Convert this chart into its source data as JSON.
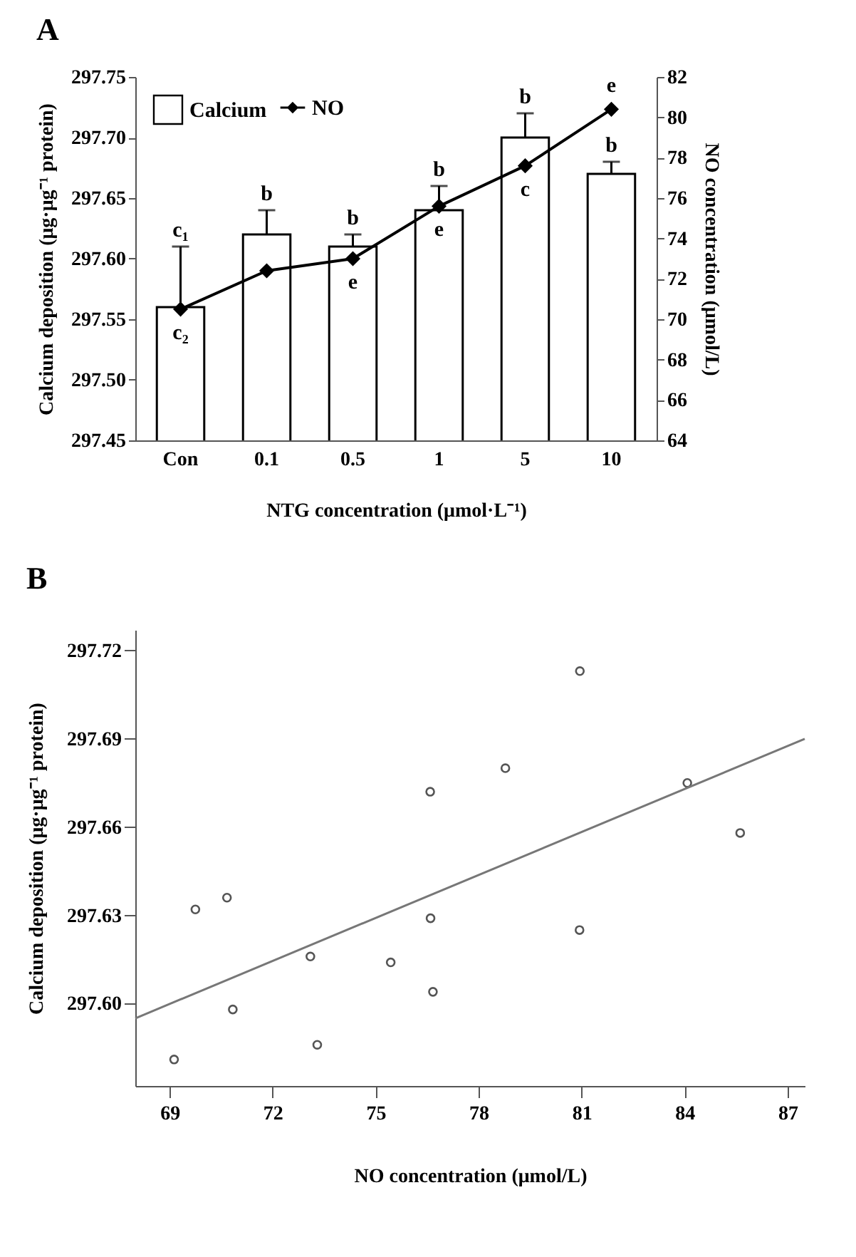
{
  "chart_data": [
    {
      "type": "bar",
      "title": "A",
      "xlabel": "NTG concentration (μmol·L⁻¹)",
      "ylabel": "Calcium deposition (μg·μg⁻¹ protein)",
      "y2label": "NO concentration (μmol/L)",
      "categories": [
        "Con",
        "0.1",
        "0.5",
        "1",
        "5",
        "10"
      ],
      "ylim": [
        297.45,
        297.75
      ],
      "yticks": [
        297.45,
        {
          "value": 297.5,
          "label": "297.50"
        },
        297.55,
        {
          "value": 297.6,
          "label": "297.60"
        },
        297.65,
        {
          "value": 297.7,
          "label": "297.70"
        },
        297.75
      ],
      "y2lim": [
        64,
        82
      ],
      "y2ticks": [
        64,
        66,
        68,
        70,
        72,
        74,
        76,
        78,
        80,
        82
      ],
      "legend": "top left",
      "series": [
        {
          "name": "Calcium",
          "type": "bar",
          "color": "#ffffff",
          "values": [
            297.56,
            297.62,
            297.61,
            297.64,
            297.7,
            297.67
          ],
          "errors": [
            [
              297.56,
              297.61
            ],
            [
              297.62,
              297.64
            ],
            [
              297.61,
              297.62
            ],
            [
              297.64,
              297.66
            ],
            [
              297.7,
              297.72
            ],
            [
              297.67,
              297.68
            ]
          ],
          "value_labels": [
            "c₁",
            "b",
            "b",
            "b",
            "b",
            "b"
          ]
        },
        {
          "name": "NO",
          "type": "line",
          "axis": "y2",
          "color": "#000000",
          "marker": "diamond",
          "values": [
            70.5,
            72.4,
            73.0,
            75.6,
            77.6,
            80.4
          ],
          "value_labels": [
            "c₂",
            null,
            "e",
            "e",
            "c",
            "e"
          ]
        }
      ]
    },
    {
      "type": "scatter",
      "title": "B",
      "xlabel": "NO concentration (μmol/L)",
      "ylabel": "Calcium deposition (μg·μg⁻¹ protein)",
      "xlim": [
        68,
        87.5
      ],
      "xticks": [
        69,
        72,
        75,
        78,
        81,
        84,
        87
      ],
      "ylim": [
        297.572,
        297.727
      ],
      "yticks": [
        {
          "value": 297.6,
          "label": "297.60"
        },
        297.63,
        297.66,
        297.69,
        297.72
      ],
      "series": [
        {
          "type": "scatter",
          "color": "#555555",
          "marker": "circle",
          "x": [
            69.13,
            69.75,
            70.67,
            70.84,
            73.1,
            73.3,
            75.44,
            76.6,
            76.67,
            80.94,
            80.95,
            78.78,
            76.59,
            84.08,
            85.62
          ],
          "values": [
            297.581,
            297.632,
            297.636,
            297.598,
            297.616,
            297.586,
            297.614,
            297.629,
            297.604,
            297.625,
            297.713,
            297.68,
            297.672,
            297.675,
            297.658
          ]
        },
        {
          "type": "line",
          "color": "#777777",
          "x": [
            68,
            87.5
          ],
          "values": [
            297.595,
            297.69
          ]
        }
      ]
    }
  ]
}
